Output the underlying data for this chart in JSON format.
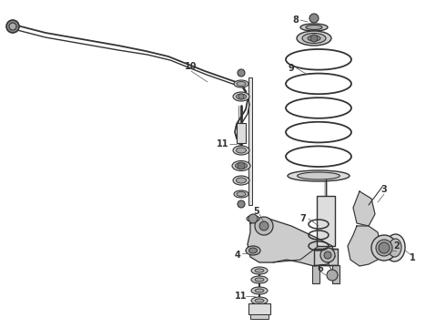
{
  "bg_color": "#ffffff",
  "line_color": "#333333",
  "figsize": [
    4.9,
    3.6
  ],
  "dpi": 100,
  "xlim": [
    0,
    490
  ],
  "ylim": [
    0,
    360
  ]
}
